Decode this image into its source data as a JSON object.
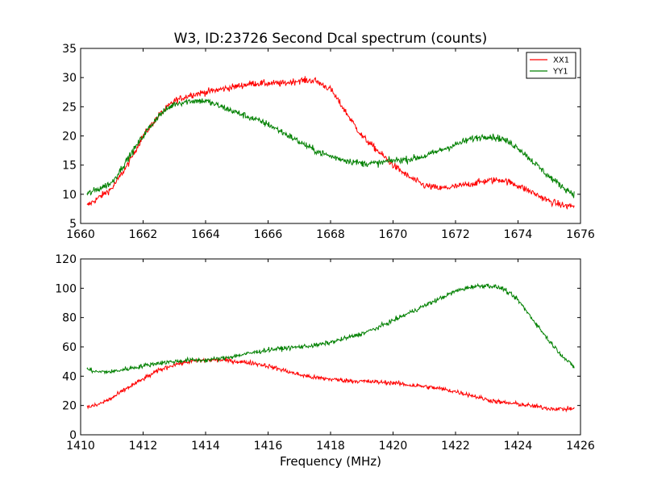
{
  "figure": {
    "title": "W3, ID:23726 Second Dcal spectrum (counts)"
  },
  "chart_data": [
    {
      "type": "line",
      "title": "W3, ID:23726 Second Dcal spectrum (counts)",
      "xlabel": "",
      "ylabel": "",
      "xlim": [
        1660,
        1676
      ],
      "ylim": [
        5,
        35
      ],
      "xticks": [
        1660,
        1662,
        1664,
        1666,
        1668,
        1670,
        1672,
        1674,
        1676
      ],
      "yticks": [
        5,
        10,
        15,
        20,
        25,
        30,
        35
      ],
      "grid": false,
      "legend": "top-right",
      "series": [
        {
          "name": "XX1",
          "color": "#ff0000",
          "x": [
            1660.2,
            1661.0,
            1661.5,
            1662.0,
            1662.5,
            1663.0,
            1663.5,
            1664.0,
            1664.5,
            1665.0,
            1665.5,
            1666.0,
            1666.5,
            1667.0,
            1667.5,
            1668.0,
            1668.5,
            1669.0,
            1669.5,
            1670.0,
            1670.5,
            1671.0,
            1671.5,
            1672.0,
            1672.5,
            1673.0,
            1673.5,
            1674.0,
            1674.5,
            1675.0,
            1675.5,
            1675.8
          ],
          "values": [
            8.0,
            11.0,
            15.0,
            20.0,
            23.5,
            26.0,
            27.0,
            27.5,
            28.0,
            28.5,
            29.0,
            29.0,
            29.0,
            29.5,
            29.5,
            28.0,
            24.0,
            20.0,
            17.5,
            15.0,
            13.0,
            11.5,
            11.0,
            11.3,
            11.8,
            12.3,
            12.5,
            11.5,
            10.2,
            8.8,
            8.0,
            8.0
          ]
        },
        {
          "name": "YY1",
          "color": "#008000",
          "x": [
            1660.2,
            1661.0,
            1661.5,
            1662.0,
            1662.5,
            1663.0,
            1663.5,
            1664.0,
            1664.5,
            1665.0,
            1665.5,
            1666.0,
            1666.5,
            1667.0,
            1667.5,
            1668.0,
            1668.5,
            1669.0,
            1669.5,
            1670.0,
            1670.5,
            1671.0,
            1671.5,
            1672.0,
            1672.5,
            1673.0,
            1673.5,
            1674.0,
            1674.5,
            1675.0,
            1675.5,
            1675.8
          ],
          "values": [
            10.0,
            12.0,
            16.0,
            20.0,
            23.5,
            25.5,
            26.0,
            26.0,
            25.0,
            24.0,
            23.0,
            22.0,
            20.5,
            19.0,
            17.5,
            16.5,
            15.8,
            15.3,
            15.3,
            15.8,
            16.0,
            16.5,
            17.5,
            18.5,
            19.5,
            20.0,
            19.5,
            18.0,
            15.5,
            13.0,
            11.0,
            10.0
          ]
        }
      ]
    },
    {
      "type": "line",
      "title": "",
      "xlabel": "Frequency (MHz)",
      "ylabel": "",
      "xlim": [
        1410,
        1426
      ],
      "ylim": [
        0,
        120
      ],
      "xticks": [
        1410,
        1412,
        1414,
        1416,
        1418,
        1420,
        1422,
        1424,
        1426
      ],
      "yticks": [
        0,
        20,
        40,
        60,
        80,
        100,
        120
      ],
      "grid": false,
      "series": [
        {
          "color": "#ff0000",
          "x": [
            1410.2,
            1410.5,
            1411.0,
            1411.5,
            1412.0,
            1412.5,
            1413.0,
            1413.5,
            1414.0,
            1414.5,
            1415.0,
            1415.5,
            1416.0,
            1416.5,
            1417.0,
            1417.5,
            1418.0,
            1418.5,
            1419.0,
            1419.5,
            1420.0,
            1420.5,
            1421.0,
            1421.5,
            1422.0,
            1422.5,
            1423.0,
            1423.5,
            1424.0,
            1424.5,
            1425.0,
            1425.5,
            1425.8
          ],
          "values": [
            19,
            20,
            25,
            32,
            38,
            44,
            48,
            50,
            51,
            51,
            50,
            49,
            47,
            44,
            41,
            39,
            38,
            37,
            36.5,
            36,
            35.5,
            34,
            33,
            31.5,
            29.5,
            27,
            24,
            22,
            21,
            19.5,
            18,
            17.5,
            18
          ]
        },
        {
          "color": "#008000",
          "x": [
            1410.2,
            1410.5,
            1411.0,
            1411.5,
            1412.0,
            1412.5,
            1413.0,
            1413.5,
            1414.0,
            1414.5,
            1415.0,
            1415.5,
            1416.0,
            1416.5,
            1417.0,
            1417.5,
            1418.0,
            1418.5,
            1419.0,
            1419.5,
            1420.0,
            1420.5,
            1421.0,
            1421.5,
            1422.0,
            1422.5,
            1423.0,
            1423.5,
            1424.0,
            1424.5,
            1425.0,
            1425.5,
            1425.8
          ],
          "values": [
            45,
            43,
            43,
            45,
            47,
            49,
            50,
            51,
            51,
            52,
            54,
            56,
            58,
            59,
            60,
            61,
            63,
            66,
            69,
            73,
            78,
            83,
            88,
            93,
            98,
            101,
            102,
            100,
            92,
            78,
            64,
            52,
            46
          ]
        }
      ]
    }
  ]
}
